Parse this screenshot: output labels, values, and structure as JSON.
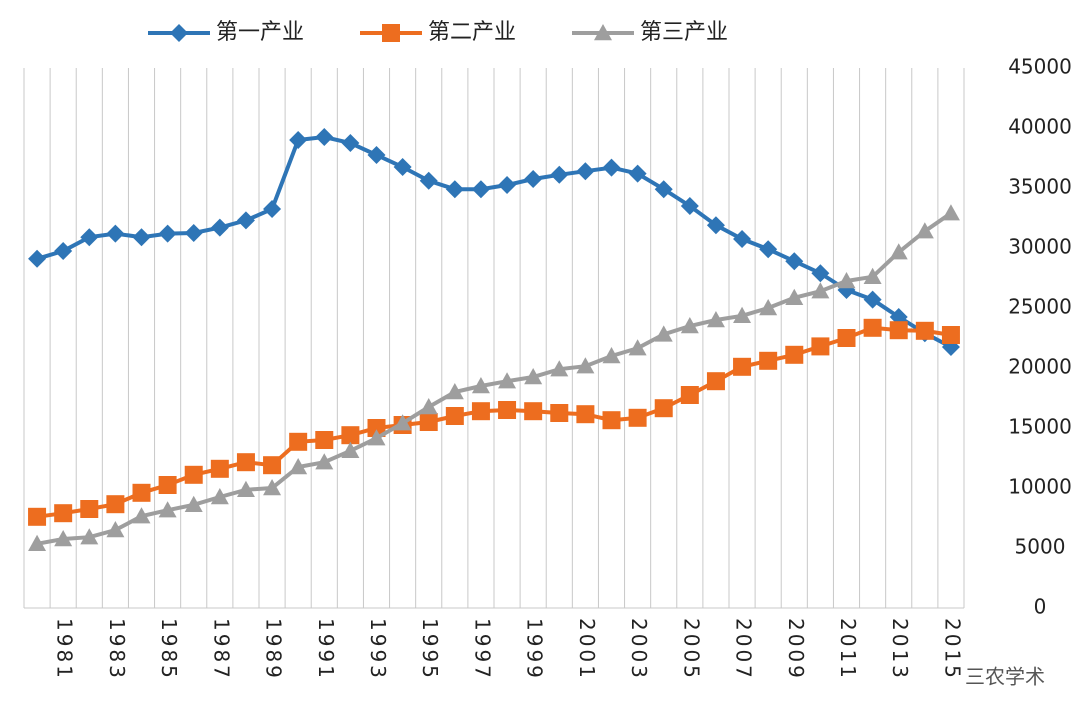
{
  "chart_data": {
    "type": "line",
    "categories": [
      null,
      "1981",
      null,
      "1983",
      null,
      "1985",
      null,
      "1987",
      null,
      "1989",
      null,
      "1991",
      null,
      "1993",
      null,
      "1995",
      null,
      "1997",
      null,
      "1999",
      null,
      "2001",
      null,
      "2003",
      null,
      "2005",
      null,
      "2007",
      null,
      "2009",
      null,
      "2011",
      null,
      "2013",
      null,
      "2015"
    ],
    "series": [
      {
        "name": "第一产业",
        "color": "#2e75b6",
        "marker": "diamond",
        "values": [
          29100,
          29750,
          30900,
          31200,
          30900,
          31200,
          31250,
          31700,
          32300,
          33250,
          39000,
          39250,
          38750,
          37750,
          36750,
          35600,
          34900,
          34900,
          35250,
          35750,
          36100,
          36400,
          36700,
          36200,
          34900,
          33500,
          31900,
          30750,
          29900,
          28900,
          27900,
          26500,
          25700,
          24250,
          22900,
          21750
        ]
      },
      {
        "name": "第二产业",
        "color": "#ed6d1f",
        "marker": "square",
        "values": [
          7600,
          7900,
          8250,
          8650,
          9600,
          10250,
          11100,
          11600,
          12150,
          11900,
          13850,
          14000,
          14400,
          15000,
          15250,
          15500,
          16000,
          16400,
          16500,
          16400,
          16250,
          16150,
          15650,
          15850,
          16650,
          17750,
          18900,
          20100,
          20600,
          21100,
          21800,
          22500,
          23350,
          23150,
          23100,
          22750
        ]
      },
      {
        "name": "第三产业",
        "color": "#9e9e9e",
        "marker": "triangle",
        "values": [
          5350,
          5750,
          5900,
          6500,
          7650,
          8150,
          8600,
          9250,
          9850,
          10000,
          11750,
          12150,
          13100,
          14150,
          15400,
          16750,
          18000,
          18500,
          18900,
          19250,
          19900,
          20150,
          21000,
          21650,
          22800,
          23500,
          24000,
          24350,
          25000,
          25850,
          26400,
          27250,
          27600,
          29650,
          31400,
          32900
        ]
      }
    ],
    "ylim": [
      0,
      45000
    ],
    "yticks": [
      0,
      5000,
      10000,
      15000,
      20000,
      25000,
      30000,
      35000,
      40000,
      45000
    ],
    "grid": true,
    "watermark": "三农学术"
  }
}
